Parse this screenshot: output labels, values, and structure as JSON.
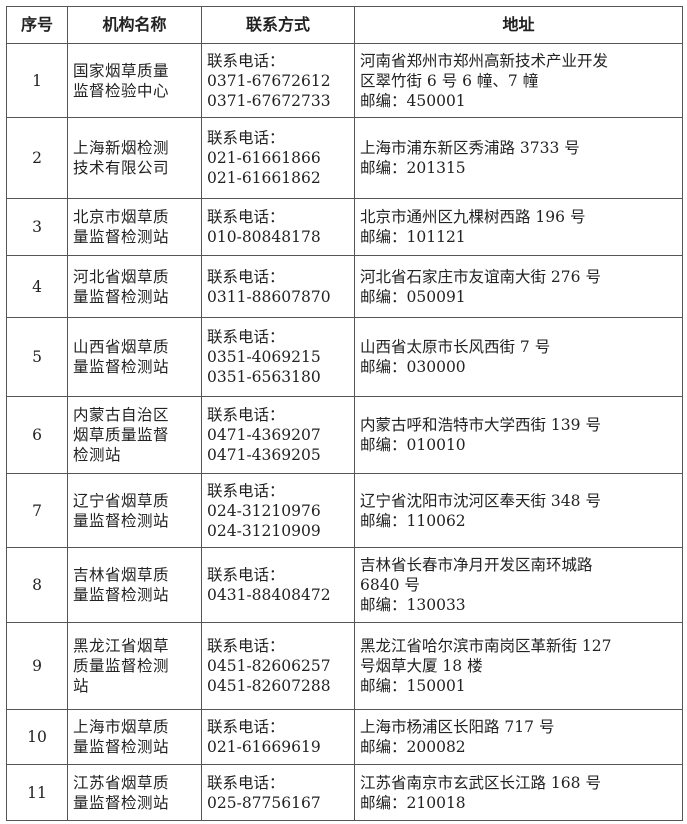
{
  "headers": [
    "序号",
    "机构名称",
    "联系方式",
    "地址"
  ],
  "rows": [
    {
      "no": "1",
      "name": [
        "国家烟草质量",
        "监督检验中心"
      ],
      "contact": [
        "联系电话：",
        "0371-67672612",
        "0371-67672733"
      ],
      "address": [
        "河南省郑州市郑州高新技术产业开发",
        "区翠竹街 6 号 6 幢、7 幢",
        "邮编：450001"
      ]
    },
    {
      "no": "2",
      "name": [
        "上海新烟检测",
        "技术有限公司"
      ],
      "contact": [
        "联系电话：",
        "021-61661866",
        "021-61661862"
      ],
      "address": [
        "上海市浦东新区秀浦路 3733 号",
        "邮编：201315"
      ]
    },
    {
      "no": "3",
      "name": [
        "北京市烟草质",
        "量监督检测站"
      ],
      "contact": [
        "联系电话：",
        "010-80848178"
      ],
      "address": [
        "北京市通州区九棵树西路 196 号",
        "邮编：101121"
      ]
    },
    {
      "no": "4",
      "name": [
        "河北省烟草质",
        "量监督检测站"
      ],
      "contact": [
        "联系电话：",
        "0311-88607870"
      ],
      "address": [
        "河北省石家庄市友谊南大街 276 号",
        "邮编：050091"
      ]
    },
    {
      "no": "5",
      "name": [
        "山西省烟草质",
        "量监督检测站"
      ],
      "contact": [
        "联系电话：",
        "0351-4069215",
        "0351-6563180"
      ],
      "address": [
        "山西省太原市长风西街 7 号",
        "邮编：030000"
      ]
    },
    {
      "no": "6",
      "name": [
        "内蒙古自治区",
        "烟草质量监督",
        "检测站"
      ],
      "contact": [
        "联系电话：",
        "0471-4369207",
        "0471-4369205"
      ],
      "address": [
        "内蒙古呼和浩特市大学西街 139 号",
        "邮编：010010"
      ]
    },
    {
      "no": "7",
      "name": [
        "辽宁省烟草质",
        "量监督检测站"
      ],
      "contact": [
        "联系电话：",
        "024-31210976",
        "024-31210909"
      ],
      "address": [
        "辽宁省沈阳市沈河区奉天街 348 号",
        "邮编：110062"
      ]
    },
    {
      "no": "8",
      "name": [
        "吉林省烟草质",
        "量监督检测站"
      ],
      "contact": [
        "联系电话：",
        "0431-88408472"
      ],
      "address": [
        "吉林省长春市净月开发区南环城路",
        "6840 号",
        "邮编：130033"
      ]
    },
    {
      "no": "9",
      "name": [
        "黑龙江省烟草",
        "质量监督检测",
        "站"
      ],
      "contact": [
        "联系电话：",
        "0451-82606257",
        "0451-82607288"
      ],
      "address": [
        "黑龙江省哈尔滨市南岗区革新街 127",
        "号烟草大厦 18 楼",
        "邮编：150001"
      ]
    },
    {
      "no": "10",
      "name": [
        "上海市烟草质",
        "量监督检测站"
      ],
      "contact": [
        "联系电话：",
        "021-61669619"
      ],
      "address": [
        "上海市杨浦区长阳路 717 号",
        "邮编：200082"
      ]
    },
    {
      "no": "11",
      "name": [
        "江苏省烟草质",
        "量监督检测站"
      ],
      "contact": [
        "联系电话：",
        "025-87756167"
      ],
      "address": [
        "江苏省南京市玄武区长江路 168 号",
        "邮编：210018"
      ]
    }
  ]
}
